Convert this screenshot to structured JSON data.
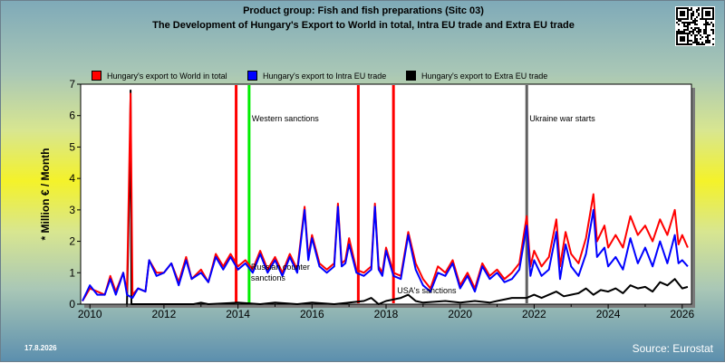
{
  "titles": {
    "line1": "Product group: Fish and fish preparations (Sitc 03)",
    "line2": "The Development of Hungary's Export to World in total, Intra EU trade and Extra EU trade"
  },
  "footer": {
    "date": "17.8.2026",
    "source": "Source: Eurostat"
  },
  "chart_data": {
    "type": "line",
    "ylabel": "* Million € / Month",
    "xlabel": "",
    "ylim": [
      0,
      7
    ],
    "xlim": [
      2009.75,
      2026.25
    ],
    "yticks": [
      0,
      1,
      2,
      3,
      4,
      5,
      6,
      7
    ],
    "xticks": [
      2010,
      2012,
      2014,
      2016,
      2018,
      2020,
      2022,
      2024,
      2026
    ],
    "grid": false,
    "legend_position": "top",
    "series": [
      {
        "name": "Hungary's export to World in total",
        "color": "#ff0000",
        "points": [
          [
            2009.8,
            0.1
          ],
          [
            2010.0,
            0.5
          ],
          [
            2010.2,
            0.4
          ],
          [
            2010.4,
            0.3
          ],
          [
            2010.55,
            0.9
          ],
          [
            2010.7,
            0.4
          ],
          [
            2010.9,
            1.0
          ],
          [
            2011.0,
            0.4
          ],
          [
            2011.1,
            6.7
          ],
          [
            2011.15,
            0.3
          ],
          [
            2011.3,
            0.5
          ],
          [
            2011.5,
            0.4
          ],
          [
            2011.6,
            1.4
          ],
          [
            2011.8,
            1.0
          ],
          [
            2012.0,
            1.0
          ],
          [
            2012.2,
            1.3
          ],
          [
            2012.4,
            0.7
          ],
          [
            2012.6,
            1.5
          ],
          [
            2012.75,
            0.8
          ],
          [
            2013.0,
            1.1
          ],
          [
            2013.2,
            0.7
          ],
          [
            2013.4,
            1.6
          ],
          [
            2013.6,
            1.2
          ],
          [
            2013.8,
            1.6
          ],
          [
            2014.0,
            1.2
          ],
          [
            2014.2,
            1.4
          ],
          [
            2014.4,
            1.1
          ],
          [
            2014.6,
            1.7
          ],
          [
            2014.8,
            1.1
          ],
          [
            2015.0,
            1.5
          ],
          [
            2015.2,
            1.0
          ],
          [
            2015.4,
            1.6
          ],
          [
            2015.6,
            1.1
          ],
          [
            2015.8,
            3.1
          ],
          [
            2015.9,
            1.5
          ],
          [
            2016.0,
            2.2
          ],
          [
            2016.2,
            1.3
          ],
          [
            2016.4,
            1.1
          ],
          [
            2016.6,
            1.3
          ],
          [
            2016.7,
            3.2
          ],
          [
            2016.8,
            1.3
          ],
          [
            2016.9,
            1.4
          ],
          [
            2017.0,
            2.1
          ],
          [
            2017.2,
            1.1
          ],
          [
            2017.4,
            1.0
          ],
          [
            2017.6,
            1.2
          ],
          [
            2017.7,
            3.2
          ],
          [
            2017.8,
            1.2
          ],
          [
            2017.9,
            1.0
          ],
          [
            2018.0,
            1.8
          ],
          [
            2018.2,
            1.0
          ],
          [
            2018.4,
            0.9
          ],
          [
            2018.6,
            2.3
          ],
          [
            2018.8,
            1.3
          ],
          [
            2019.0,
            0.8
          ],
          [
            2019.2,
            0.5
          ],
          [
            2019.4,
            1.2
          ],
          [
            2019.6,
            1.0
          ],
          [
            2019.8,
            1.4
          ],
          [
            2020.0,
            0.6
          ],
          [
            2020.2,
            1.0
          ],
          [
            2020.4,
            0.5
          ],
          [
            2020.6,
            1.3
          ],
          [
            2020.8,
            0.9
          ],
          [
            2021.0,
            1.1
          ],
          [
            2021.2,
            0.8
          ],
          [
            2021.4,
            1.0
          ],
          [
            2021.6,
            1.3
          ],
          [
            2021.8,
            2.8
          ],
          [
            2021.9,
            1.2
          ],
          [
            2022.0,
            1.7
          ],
          [
            2022.2,
            1.2
          ],
          [
            2022.4,
            1.5
          ],
          [
            2022.6,
            2.7
          ],
          [
            2022.7,
            1.2
          ],
          [
            2022.85,
            2.3
          ],
          [
            2023.0,
            1.6
          ],
          [
            2023.2,
            1.3
          ],
          [
            2023.4,
            2.1
          ],
          [
            2023.6,
            3.5
          ],
          [
            2023.7,
            2.0
          ],
          [
            2023.9,
            2.5
          ],
          [
            2024.0,
            1.8
          ],
          [
            2024.2,
            2.2
          ],
          [
            2024.4,
            1.8
          ],
          [
            2024.6,
            2.8
          ],
          [
            2024.8,
            2.2
          ],
          [
            2025.0,
            2.5
          ],
          [
            2025.2,
            2.0
          ],
          [
            2025.4,
            2.7
          ],
          [
            2025.6,
            2.2
          ],
          [
            2025.8,
            3.0
          ],
          [
            2025.9,
            1.9
          ],
          [
            2026.0,
            2.2
          ],
          [
            2026.15,
            1.8
          ]
        ]
      },
      {
        "name": "Hungary's export to Intra EU trade",
        "color": "#0000ff",
        "points": [
          [
            2009.8,
            0.1
          ],
          [
            2010.0,
            0.6
          ],
          [
            2010.2,
            0.3
          ],
          [
            2010.4,
            0.3
          ],
          [
            2010.55,
            0.8
          ],
          [
            2010.7,
            0.3
          ],
          [
            2010.9,
            1.0
          ],
          [
            2011.0,
            0.3
          ],
          [
            2011.15,
            0.2
          ],
          [
            2011.3,
            0.5
          ],
          [
            2011.5,
            0.4
          ],
          [
            2011.6,
            1.4
          ],
          [
            2011.8,
            0.9
          ],
          [
            2012.0,
            1.0
          ],
          [
            2012.2,
            1.3
          ],
          [
            2012.4,
            0.6
          ],
          [
            2012.6,
            1.4
          ],
          [
            2012.75,
            0.8
          ],
          [
            2013.0,
            1.0
          ],
          [
            2013.2,
            0.7
          ],
          [
            2013.4,
            1.5
          ],
          [
            2013.6,
            1.1
          ],
          [
            2013.8,
            1.5
          ],
          [
            2014.0,
            1.1
          ],
          [
            2014.2,
            1.3
          ],
          [
            2014.4,
            1.0
          ],
          [
            2014.6,
            1.6
          ],
          [
            2014.8,
            1.0
          ],
          [
            2015.0,
            1.4
          ],
          [
            2015.2,
            0.9
          ],
          [
            2015.4,
            1.5
          ],
          [
            2015.6,
            1.0
          ],
          [
            2015.8,
            3.0
          ],
          [
            2015.9,
            1.4
          ],
          [
            2016.0,
            2.1
          ],
          [
            2016.2,
            1.2
          ],
          [
            2016.4,
            1.0
          ],
          [
            2016.6,
            1.2
          ],
          [
            2016.7,
            3.1
          ],
          [
            2016.8,
            1.2
          ],
          [
            2016.9,
            1.3
          ],
          [
            2017.0,
            1.9
          ],
          [
            2017.2,
            1.0
          ],
          [
            2017.4,
            0.9
          ],
          [
            2017.6,
            1.1
          ],
          [
            2017.7,
            3.1
          ],
          [
            2017.8,
            1.1
          ],
          [
            2017.9,
            0.9
          ],
          [
            2018.0,
            1.7
          ],
          [
            2018.2,
            0.9
          ],
          [
            2018.4,
            0.8
          ],
          [
            2018.6,
            2.2
          ],
          [
            2018.8,
            1.1
          ],
          [
            2019.0,
            0.6
          ],
          [
            2019.2,
            0.4
          ],
          [
            2019.4,
            1.0
          ],
          [
            2019.6,
            0.9
          ],
          [
            2019.8,
            1.3
          ],
          [
            2020.0,
            0.5
          ],
          [
            2020.2,
            0.9
          ],
          [
            2020.4,
            0.4
          ],
          [
            2020.6,
            1.2
          ],
          [
            2020.8,
            0.8
          ],
          [
            2021.0,
            1.0
          ],
          [
            2021.2,
            0.7
          ],
          [
            2021.4,
            0.8
          ],
          [
            2021.6,
            1.1
          ],
          [
            2021.8,
            2.5
          ],
          [
            2021.9,
            0.9
          ],
          [
            2022.0,
            1.4
          ],
          [
            2022.2,
            0.9
          ],
          [
            2022.4,
            1.1
          ],
          [
            2022.6,
            2.3
          ],
          [
            2022.7,
            0.8
          ],
          [
            2022.85,
            1.9
          ],
          [
            2023.0,
            1.2
          ],
          [
            2023.2,
            0.9
          ],
          [
            2023.4,
            1.6
          ],
          [
            2023.6,
            3.0
          ],
          [
            2023.7,
            1.5
          ],
          [
            2023.9,
            1.8
          ],
          [
            2024.0,
            1.2
          ],
          [
            2024.2,
            1.5
          ],
          [
            2024.4,
            1.1
          ],
          [
            2024.6,
            2.1
          ],
          [
            2024.8,
            1.3
          ],
          [
            2025.0,
            1.8
          ],
          [
            2025.2,
            1.2
          ],
          [
            2025.4,
            2.0
          ],
          [
            2025.6,
            1.3
          ],
          [
            2025.8,
            2.2
          ],
          [
            2025.9,
            1.3
          ],
          [
            2026.0,
            1.4
          ],
          [
            2026.15,
            1.2
          ]
        ]
      },
      {
        "name": "Hungary's export to Extra EU trade",
        "color": "#000000",
        "points": [
          [
            2011.0,
            0.0
          ],
          [
            2011.08,
            4.5
          ],
          [
            2011.1,
            6.8
          ],
          [
            2011.12,
            0.0
          ],
          [
            2012.8,
            0.0
          ],
          [
            2013.0,
            0.05
          ],
          [
            2013.2,
            0.0
          ],
          [
            2014.0,
            0.05
          ],
          [
            2014.6,
            0.0
          ],
          [
            2015.0,
            0.05
          ],
          [
            2015.6,
            0.0
          ],
          [
            2016.0,
            0.05
          ],
          [
            2016.6,
            0.0
          ],
          [
            2017.0,
            0.05
          ],
          [
            2017.4,
            0.1
          ],
          [
            2017.6,
            0.2
          ],
          [
            2017.8,
            0.0
          ],
          [
            2018.0,
            0.1
          ],
          [
            2018.4,
            0.2
          ],
          [
            2018.6,
            0.3
          ],
          [
            2018.8,
            0.1
          ],
          [
            2019.0,
            0.05
          ],
          [
            2019.6,
            0.1
          ],
          [
            2020.0,
            0.05
          ],
          [
            2020.4,
            0.1
          ],
          [
            2020.8,
            0.05
          ],
          [
            2021.0,
            0.1
          ],
          [
            2021.4,
            0.2
          ],
          [
            2021.8,
            0.2
          ],
          [
            2022.0,
            0.3
          ],
          [
            2022.2,
            0.2
          ],
          [
            2022.4,
            0.3
          ],
          [
            2022.6,
            0.4
          ],
          [
            2022.8,
            0.25
          ],
          [
            2023.0,
            0.3
          ],
          [
            2023.2,
            0.35
          ],
          [
            2023.4,
            0.5
          ],
          [
            2023.6,
            0.3
          ],
          [
            2023.8,
            0.45
          ],
          [
            2024.0,
            0.4
          ],
          [
            2024.2,
            0.5
          ],
          [
            2024.4,
            0.35
          ],
          [
            2024.6,
            0.6
          ],
          [
            2024.8,
            0.5
          ],
          [
            2025.0,
            0.55
          ],
          [
            2025.2,
            0.4
          ],
          [
            2025.4,
            0.7
          ],
          [
            2025.6,
            0.6
          ],
          [
            2025.8,
            0.8
          ],
          [
            2026.0,
            0.5
          ],
          [
            2026.15,
            0.55
          ]
        ]
      }
    ],
    "events": [
      {
        "x": 2013.95,
        "color": "#ff0000",
        "label": ""
      },
      {
        "x": 2014.3,
        "color": "#00ee00",
        "label": "Western sanctions"
      },
      {
        "x": 2017.25,
        "color": "#ff0000",
        "label": ""
      },
      {
        "x": 2018.2,
        "color": "#ff0000",
        "label": ""
      },
      {
        "x": 2021.8,
        "color": "#606060",
        "label": "Ukraine war starts"
      }
    ],
    "annotations": [
      {
        "text": "Russian counter sanctions",
        "x": 2014.35,
        "y": 1.1
      },
      {
        "text": "USA's sanctions",
        "x": 2018.3,
        "y": 0.35
      }
    ]
  }
}
